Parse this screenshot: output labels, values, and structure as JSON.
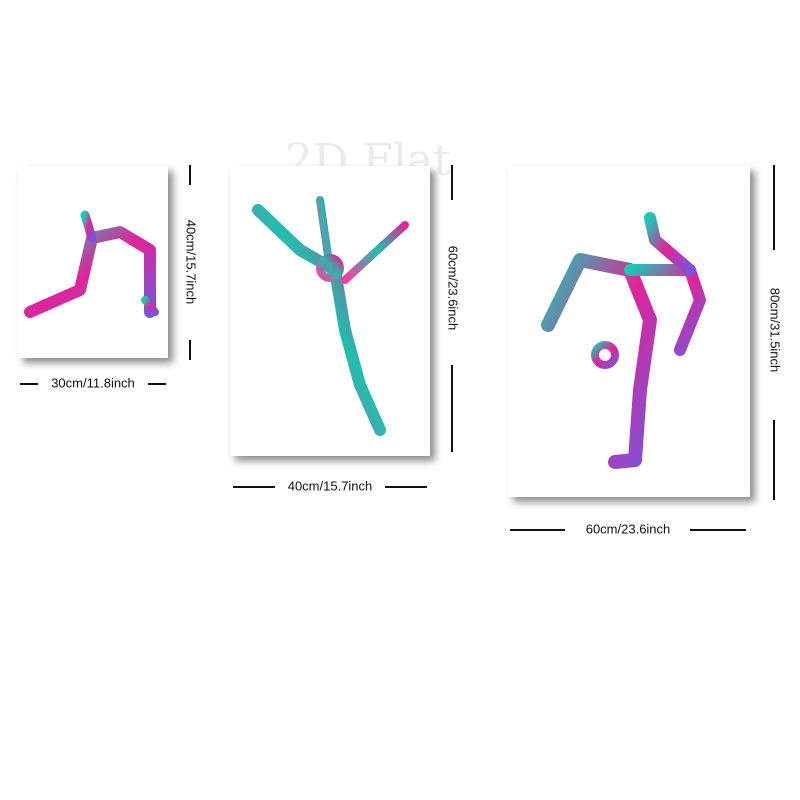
{
  "watermark": "2D Flat",
  "prints": [
    {
      "width_label": "30cm/11.8inch",
      "height_label": "40cm/15.7inch"
    },
    {
      "width_label": "40cm/15.7inch",
      "height_label": "60cm/23.6inch"
    },
    {
      "width_label": "60cm/23.6inch",
      "height_label": "80cm/31.5inch"
    }
  ]
}
